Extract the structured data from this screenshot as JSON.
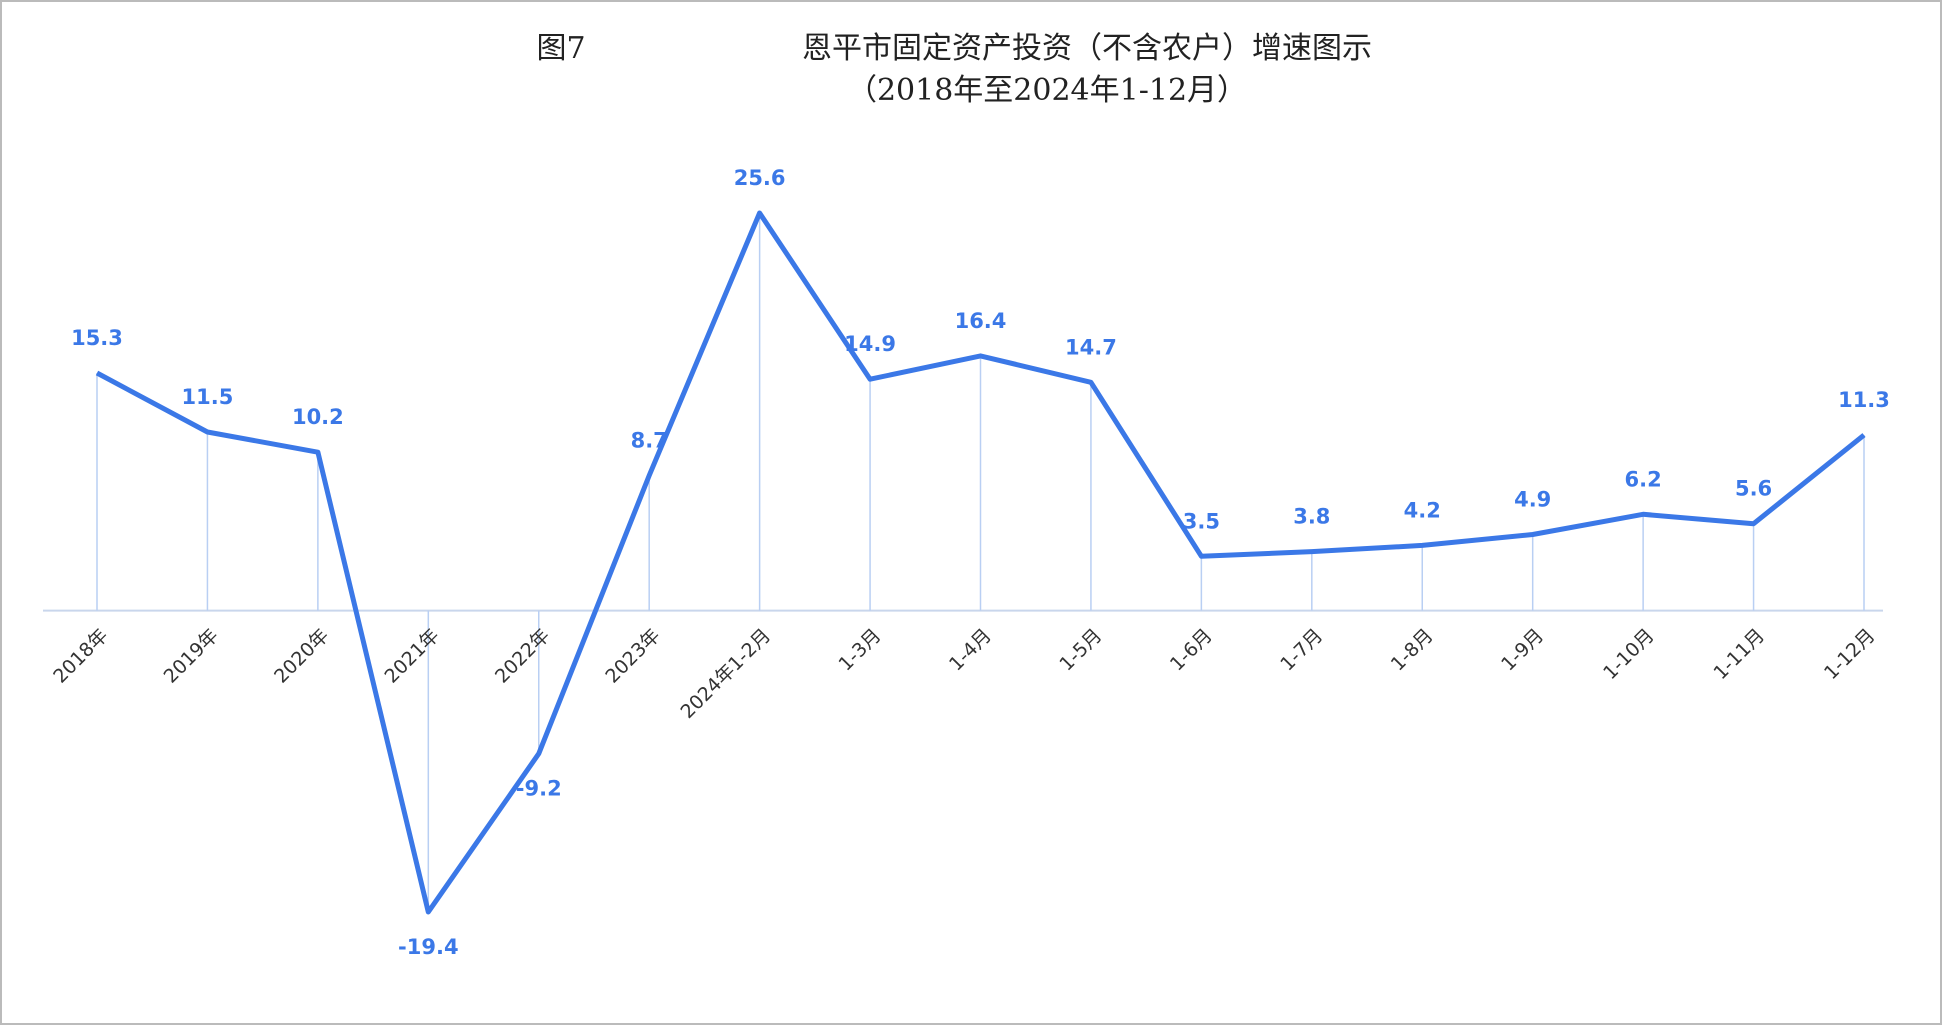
{
  "chart_data": {
    "type": "line",
    "figure_label": "图7",
    "title": "恩平市固定资产投资（不含农户）增速图示",
    "subtitle": "（2018年至2024年1-12月）",
    "categories": [
      "2018年",
      "2019年",
      "2020年",
      "2021年",
      "2022年",
      "2023年",
      "2024年1-2月",
      "1-3月",
      "1-4月",
      "1-5月",
      "1-6月",
      "1-7月",
      "1-8月",
      "1-9月",
      "1-10月",
      "1-11月",
      "1-12月"
    ],
    "values": [
      15.3,
      11.5,
      10.2,
      -19.4,
      -9.2,
      8.7,
      25.6,
      14.9,
      16.4,
      14.7,
      3.5,
      3.8,
      4.2,
      4.9,
      6.2,
      5.6,
      11.3
    ],
    "color": "#3b78e7",
    "drop_line_color": "#b9cff3"
  }
}
